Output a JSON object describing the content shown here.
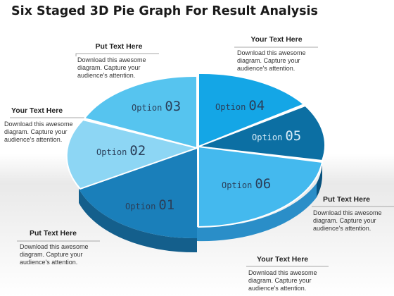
{
  "title": "Six Staged 3D Pie Graph For Result Analysis",
  "slices": [
    {
      "label": "Option 01",
      "word": "Option",
      "number": "01",
      "color": "#1a7fba"
    },
    {
      "label": "Option 02",
      "word": "Option",
      "number": "02",
      "color": "#7fd0f2"
    },
    {
      "label": "Option 03",
      "word": "Option",
      "number": "03",
      "color": "#52c3ef"
    },
    {
      "label": "Option 04",
      "word": "Option",
      "number": "04",
      "color": "#14a6e6"
    },
    {
      "label": "Option 05",
      "word": "Option",
      "number": "05",
      "color": "#0c6fa3"
    },
    {
      "label": "Option 06",
      "word": "Option",
      "number": "06",
      "color": "#3fb8ee"
    }
  ],
  "callouts": {
    "top_left": {
      "heading": "Put Text Here",
      "body": "Download this awesome diagram. Capture your audience's attention."
    },
    "top_right": {
      "heading": "Your Text Here",
      "body": "Download this awesome diagram. Capture your audience's attention."
    },
    "mid_left": {
      "heading": "Your Text Here",
      "body": "Download this awesome diagram. Capture your audience's attention."
    },
    "mid_right": {
      "heading": "Put Text Here",
      "body": "Download this awesome diagram. Capture your audience's attention."
    },
    "bottom_left": {
      "heading": "Put Text Here",
      "body": "Download this awesome diagram. Capture your audience's attention."
    },
    "bottom_right": {
      "heading": "Your Text Here",
      "body": "Download this awesome diagram. Capture your audience's attention."
    }
  }
}
